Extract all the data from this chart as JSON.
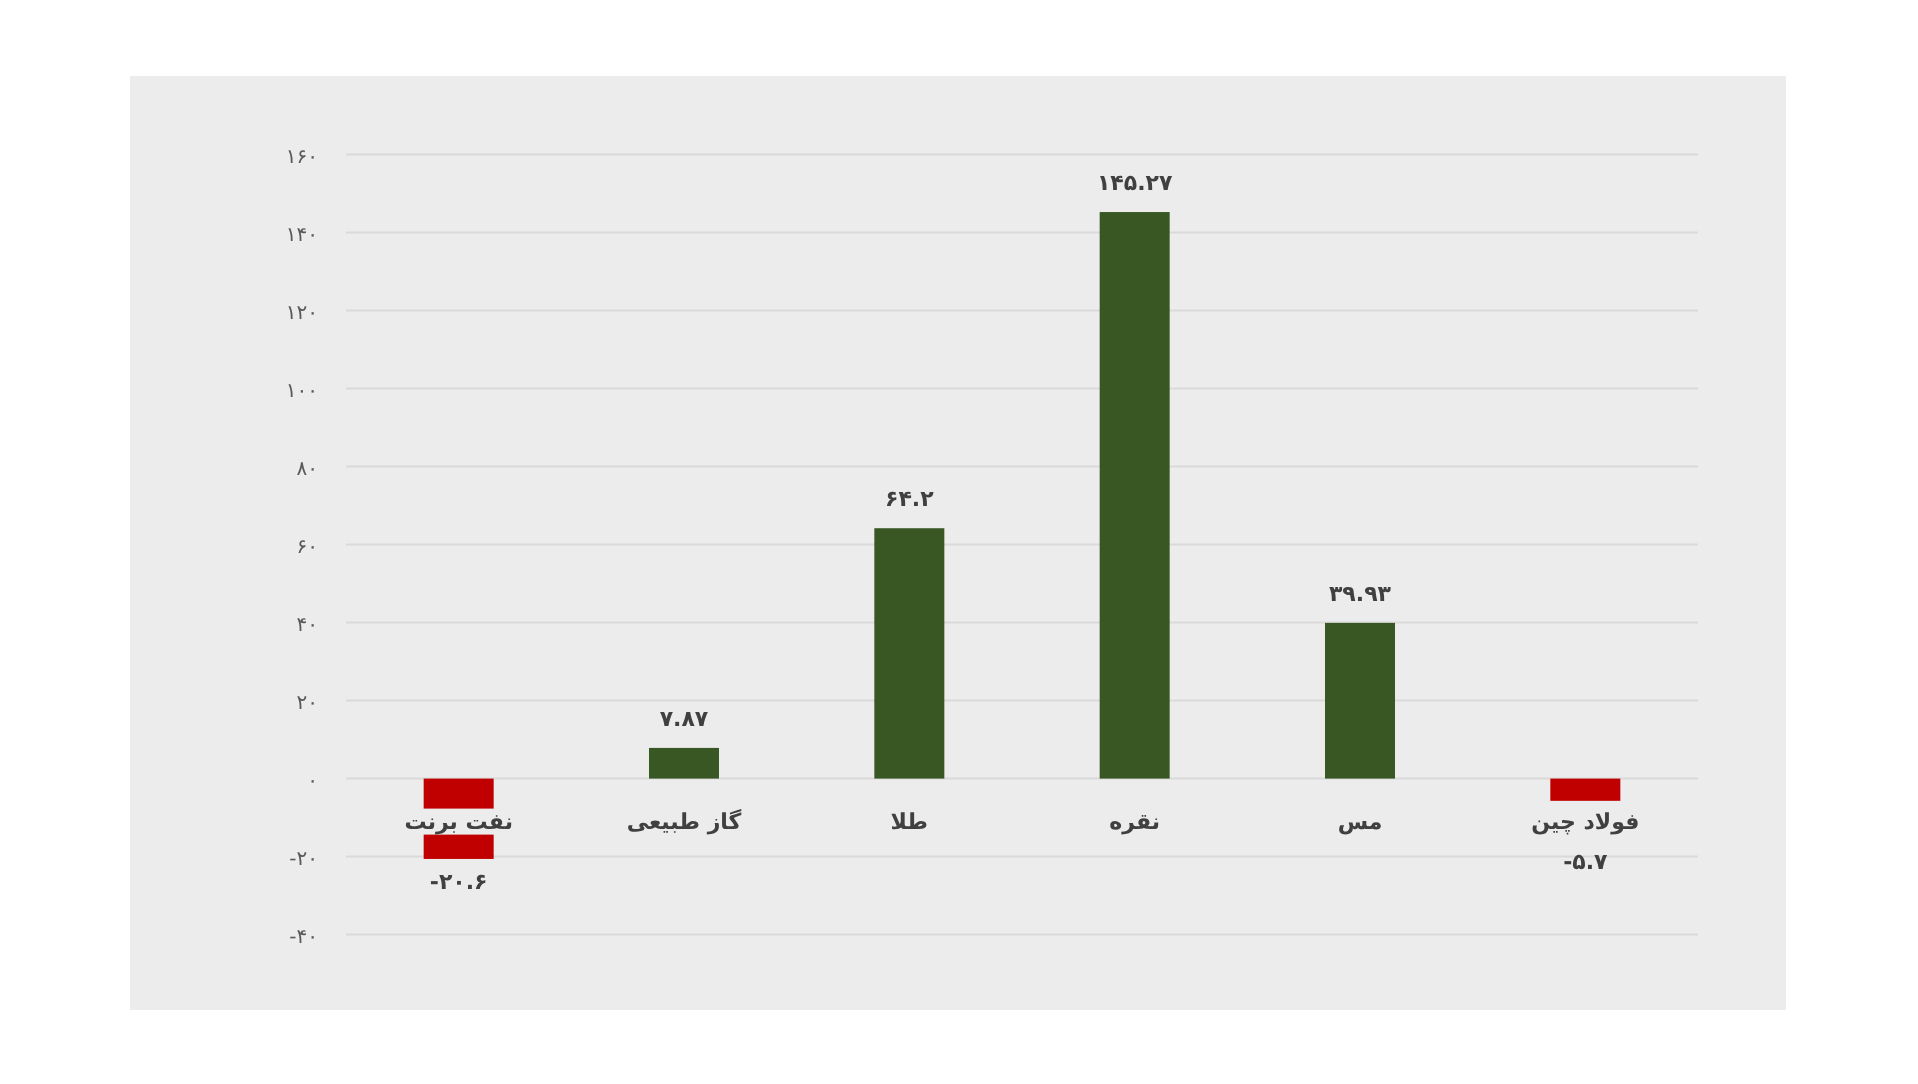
{
  "chart_data": {
    "type": "bar",
    "categories": [
      "نفت برنت",
      "گاز طبیعی",
      "طلا",
      "نقره",
      "مس",
      "فولاد چین"
    ],
    "values": [
      -20.6,
      7.87,
      64.2,
      145.27,
      39.93,
      -5.7
    ],
    "colors": [
      "#c00000",
      "#385723",
      "#385723",
      "#385723",
      "#385723",
      "#c00000"
    ],
    "value_labels": [
      "-۲۰.۶",
      "۷.۸۷",
      "۶۴.۲",
      "۱۴۵.۲۷",
      "۳۹.۹۳",
      "-۵.۷"
    ],
    "ylim": [
      -40,
      160
    ],
    "yticks": [
      {
        "value": -40,
        "label": "-۴۰"
      },
      {
        "value": -20,
        "label": "-۲۰"
      },
      {
        "value": 0,
        "label": "۰"
      },
      {
        "value": 20,
        "label": "۲۰"
      },
      {
        "value": 40,
        "label": "۴۰"
      },
      {
        "value": 60,
        "label": "۶۰"
      },
      {
        "value": 80,
        "label": "۸۰"
      },
      {
        "value": 100,
        "label": "۱۰۰"
      },
      {
        "value": 120,
        "label": "۱۲۰"
      },
      {
        "value": 140,
        "label": "۱۴۰"
      },
      {
        "value": 160,
        "label": "۱۶۰"
      }
    ],
    "grid": "y"
  }
}
